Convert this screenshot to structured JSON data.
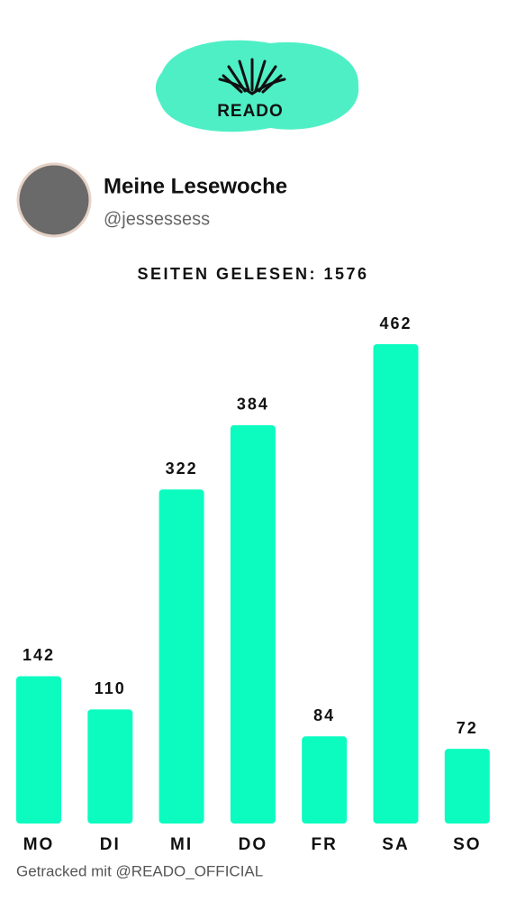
{
  "logo": {
    "text": "READO"
  },
  "profile": {
    "name": "Meine Lesewoche",
    "handle": "@jessessess"
  },
  "chart_data": {
    "type": "bar",
    "title": "SEITEN GELESEN: 1576",
    "categories": [
      "MO",
      "DI",
      "MI",
      "DO",
      "FR",
      "SA",
      "SO"
    ],
    "values": [
      142,
      110,
      322,
      384,
      84,
      462,
      72
    ],
    "color": "#0cfcc0"
  },
  "footer": "Getracked mit @READO_OFFICIAL"
}
